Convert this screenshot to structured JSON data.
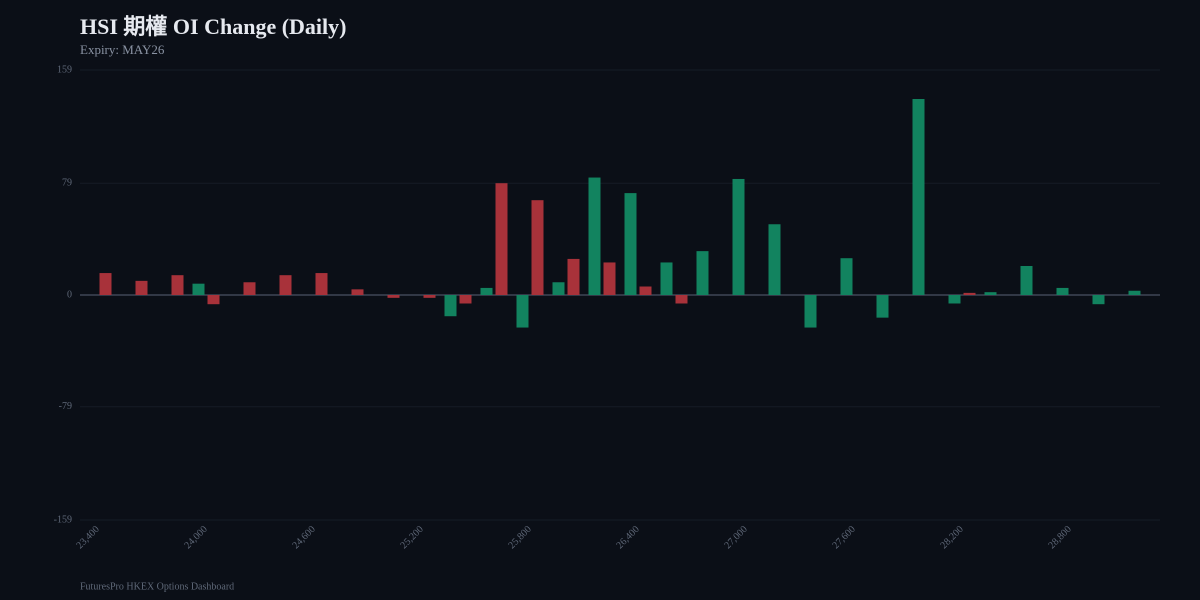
{
  "chart_data": {
    "type": "bar",
    "title": "HSI 期權 OI Change (Daily)",
    "subtitle": "Expiry: MAY26",
    "footer": "FuturesPro HKEX Options Dashboard",
    "categories": [
      "23,400",
      null,
      null,
      "24,000",
      null,
      null,
      "24,600",
      null,
      null,
      "25,200",
      null,
      null,
      "25,800",
      null,
      null,
      "26,400",
      null,
      null,
      "27,000",
      null,
      null,
      "27,600",
      null,
      null,
      "28,200",
      null,
      null,
      "28,800",
      null,
      null
    ],
    "series": [
      {
        "color": "#12835f",
        "values": [
          0,
          0,
          0,
          8,
          0,
          0,
          0,
          0,
          0,
          0,
          -15,
          5,
          -23,
          9,
          83,
          72,
          23,
          31,
          82,
          50,
          -23,
          26,
          -16,
          138.5,
          -6,
          2,
          20.5,
          5,
          -6.5,
          3
        ]
      },
      {
        "color": "#a8323a",
        "values": [
          15.5,
          10,
          14,
          -6.5,
          9,
          14,
          15.5,
          4,
          -2,
          -2,
          -6,
          79,
          67,
          25.5,
          23,
          6,
          -6,
          0,
          0,
          0,
          0,
          0,
          0,
          0,
          1.5,
          0,
          0,
          0,
          0,
          0
        ]
      }
    ],
    "ylim": [
      -159,
      159
    ],
    "yticks": [
      -159,
      -79,
      0,
      79,
      159
    ],
    "grid": true
  }
}
